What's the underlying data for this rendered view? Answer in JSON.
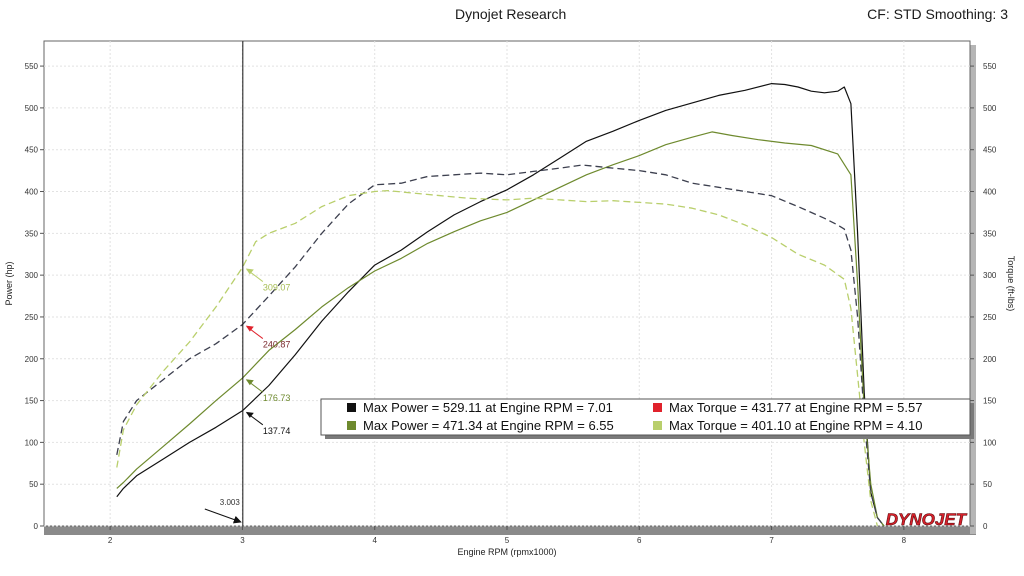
{
  "header": {
    "title": "Dynojet Research",
    "right_info": "CF: STD Smoothing: 3"
  },
  "chart_data": {
    "type": "line",
    "xlabel": "Engine RPM (rpmx1000)",
    "ylabel": "Power (hp)",
    "y2label": "Torque (ft-lbs)",
    "xlim": [
      1.5,
      8.5
    ],
    "ylim": [
      0,
      580
    ],
    "xticks": [
      "2",
      "3",
      "4",
      "5",
      "6",
      "7",
      "8"
    ],
    "yticks": [
      "0",
      "50",
      "100",
      "150",
      "200",
      "250",
      "300",
      "350",
      "400",
      "450",
      "500",
      "550"
    ],
    "grid": true,
    "cursor": {
      "x": 3.003,
      "label": "3.003"
    },
    "colors": {
      "run1": "#111111",
      "run1_torque": "#3c3f4e",
      "run2": "#6e8a2e",
      "run2_torque": "#b9cf6c",
      "torque_marker": "#e0222c"
    },
    "series": [
      {
        "key": "power1",
        "kind": "power",
        "dash": false,
        "color": "#111111",
        "x": [
          2.05,
          2.1,
          2.2,
          2.4,
          2.6,
          2.8,
          3.0,
          3.2,
          3.4,
          3.6,
          3.8,
          4.0,
          4.2,
          4.4,
          4.6,
          4.8,
          5.0,
          5.2,
          5.4,
          5.6,
          5.8,
          6.0,
          6.2,
          6.4,
          6.6,
          6.8,
          7.0,
          7.1,
          7.2,
          7.3,
          7.4,
          7.5,
          7.55,
          7.6,
          7.65,
          7.7,
          7.75,
          7.8,
          7.85
        ],
        "y": [
          35,
          45,
          60,
          80,
          100,
          118,
          137.74,
          168,
          205,
          245,
          280,
          312,
          330,
          352,
          372,
          388,
          402,
          420,
          440,
          460,
          472,
          485,
          497,
          506,
          515,
          521,
          529.11,
          528,
          525,
          520,
          518,
          520,
          525,
          505,
          350,
          160,
          40,
          10,
          0
        ]
      },
      {
        "key": "power2",
        "kind": "power",
        "dash": false,
        "color": "#6e8a2e",
        "x": [
          2.05,
          2.1,
          2.2,
          2.4,
          2.6,
          2.8,
          3.0,
          3.2,
          3.4,
          3.6,
          3.8,
          4.0,
          4.2,
          4.4,
          4.6,
          4.8,
          5.0,
          5.2,
          5.4,
          5.6,
          5.8,
          6.0,
          6.2,
          6.4,
          6.55,
          6.7,
          6.9,
          7.1,
          7.3,
          7.5,
          7.6,
          7.65,
          7.7,
          7.75,
          7.8,
          7.85
        ],
        "y": [
          45,
          52,
          68,
          95,
          122,
          150,
          176.73,
          210,
          235,
          262,
          285,
          305,
          320,
          338,
          352,
          365,
          375,
          390,
          405,
          420,
          432,
          443,
          456,
          465,
          471.34,
          467,
          462,
          458,
          455,
          445,
          420,
          290,
          140,
          50,
          10,
          0
        ]
      },
      {
        "key": "torque1",
        "kind": "torque",
        "dash": true,
        "color": "#3c3f4e",
        "x": [
          2.05,
          2.1,
          2.2,
          2.4,
          2.6,
          2.8,
          3.0,
          3.2,
          3.4,
          3.6,
          3.8,
          4.0,
          4.2,
          4.4,
          4.6,
          4.8,
          5.0,
          5.2,
          5.4,
          5.57,
          5.8,
          6.0,
          6.2,
          6.4,
          6.6,
          6.8,
          7.0,
          7.2,
          7.4,
          7.5,
          7.55,
          7.6,
          7.65,
          7.7,
          7.75,
          7.8,
          7.85
        ],
        "y": [
          85,
          125,
          150,
          175,
          200,
          218,
          240.87,
          275,
          310,
          350,
          385,
          408,
          410,
          418,
          420,
          422,
          420,
          424,
          428,
          431.77,
          428,
          425,
          420,
          410,
          405,
          400,
          395,
          382,
          368,
          360,
          355,
          330,
          250,
          130,
          40,
          10,
          0
        ]
      },
      {
        "key": "torque2",
        "kind": "torque",
        "dash": true,
        "color": "#b9cf6c",
        "x": [
          2.05,
          2.1,
          2.2,
          2.4,
          2.6,
          2.8,
          3.0,
          3.1,
          3.2,
          3.4,
          3.6,
          3.8,
          4.0,
          4.1,
          4.3,
          4.5,
          4.7,
          5.0,
          5.2,
          5.4,
          5.6,
          5.8,
          6.0,
          6.2,
          6.4,
          6.6,
          6.8,
          7.0,
          7.2,
          7.4,
          7.55,
          7.6,
          7.65,
          7.7,
          7.75,
          7.8
        ],
        "y": [
          70,
          115,
          145,
          185,
          220,
          262,
          309.07,
          340,
          350,
          362,
          382,
          395,
          400,
          401.1,
          398,
          395,
          392,
          390,
          392,
          390,
          388,
          389,
          387,
          385,
          380,
          372,
          360,
          345,
          325,
          312,
          295,
          260,
          180,
          100,
          30,
          0
        ]
      }
    ],
    "cursor_labels": [
      {
        "series": "torque2",
        "value": "309.07"
      },
      {
        "series": "torque1",
        "value": "240.87"
      },
      {
        "series": "power2",
        "value": "176.73"
      },
      {
        "series": "power1",
        "value": "137.74"
      }
    ],
    "legend": {
      "entries": [
        {
          "text": "Max Power = 529.11 at Engine RPM = 7.01",
          "color": "#111111"
        },
        {
          "text": "Max Torque = 431.77 at Engine RPM = 5.57",
          "color": "#e0222c"
        },
        {
          "text": "Max Power = 471.34 at Engine RPM = 6.55",
          "color": "#6e8a2e"
        },
        {
          "text": "Max Torque = 401.10 at Engine RPM = 4.10",
          "color": "#b9cf6c"
        }
      ]
    },
    "logo": "DYNOJET"
  }
}
